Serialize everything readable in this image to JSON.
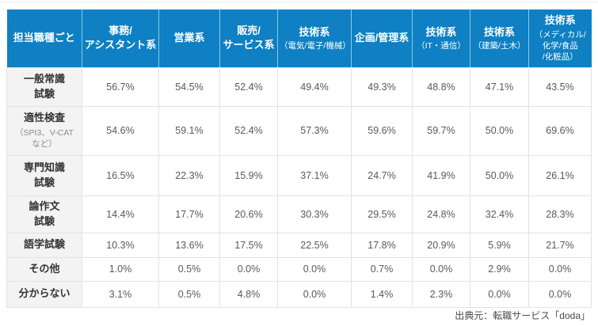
{
  "colors": {
    "header_bg": "#0e80c3",
    "row_label_bg": "#f3f3f3",
    "body_border": "#e3e3e3",
    "header_text": "#ffffff",
    "body_text": "#595959"
  },
  "source_note": "出典元：転職サービス「doda」",
  "chart_data": {
    "type": "table",
    "title": "",
    "corner_header": "担当職種ごと",
    "columns": [
      {
        "name": [
          "事務/",
          "アシスタント系"
        ],
        "sub": []
      },
      {
        "name": [
          "営業系"
        ],
        "sub": []
      },
      {
        "name": [
          "販売/",
          "サービス系"
        ],
        "sub": []
      },
      {
        "name": [
          "技術系"
        ],
        "sub": [
          "（電気/電子/機械）"
        ]
      },
      {
        "name": [
          "企画/管理系"
        ],
        "sub": []
      },
      {
        "name": [
          "技術系"
        ],
        "sub": [
          "（IT・通信）"
        ]
      },
      {
        "name": [
          "技術系"
        ],
        "sub": [
          "（建築/土木）"
        ]
      },
      {
        "name": [
          "技術系"
        ],
        "sub": [
          "（メディカル/",
          "化学/食品",
          "/化粧品）"
        ]
      }
    ],
    "rows": [
      {
        "label": [
          "一般常識",
          "試験"
        ],
        "sub": [],
        "values": [
          "56.7%",
          "54.5%",
          "52.4%",
          "49.4%",
          "49.3%",
          "48.8%",
          "47.1%",
          "43.5%"
        ]
      },
      {
        "label": [
          "適性検査"
        ],
        "sub": [
          "（SPI3、V-CAT",
          "など）"
        ],
        "values": [
          "54.6%",
          "59.1%",
          "52.4%",
          "57.3%",
          "59.6%",
          "59.7%",
          "50.0%",
          "69.6%"
        ]
      },
      {
        "label": [
          "専門知識",
          "試験"
        ],
        "sub": [],
        "values": [
          "16.5%",
          "22.3%",
          "15.9%",
          "37.1%",
          "24.7%",
          "41.9%",
          "50.0%",
          "26.1%"
        ]
      },
      {
        "label": [
          "論作文",
          "試験"
        ],
        "sub": [],
        "values": [
          "14.4%",
          "17.7%",
          "20.6%",
          "30.3%",
          "29.5%",
          "24.8%",
          "32.4%",
          "28.3%"
        ]
      },
      {
        "label": [
          "語学試験"
        ],
        "sub": [],
        "values": [
          "10.3%",
          "13.6%",
          "17.5%",
          "22.5%",
          "17.8%",
          "20.9%",
          "5.9%",
          "21.7%"
        ]
      },
      {
        "label": [
          "その他"
        ],
        "sub": [],
        "values": [
          "1.0%",
          "0.5%",
          "0.0%",
          "0.0%",
          "0.7%",
          "0.0%",
          "2.9%",
          "0.0%"
        ]
      },
      {
        "label": [
          "分からない"
        ],
        "sub": [],
        "values": [
          "3.1%",
          "0.5%",
          "4.8%",
          "0.0%",
          "1.4%",
          "2.3%",
          "0.0%",
          "0.0%"
        ]
      }
    ]
  }
}
